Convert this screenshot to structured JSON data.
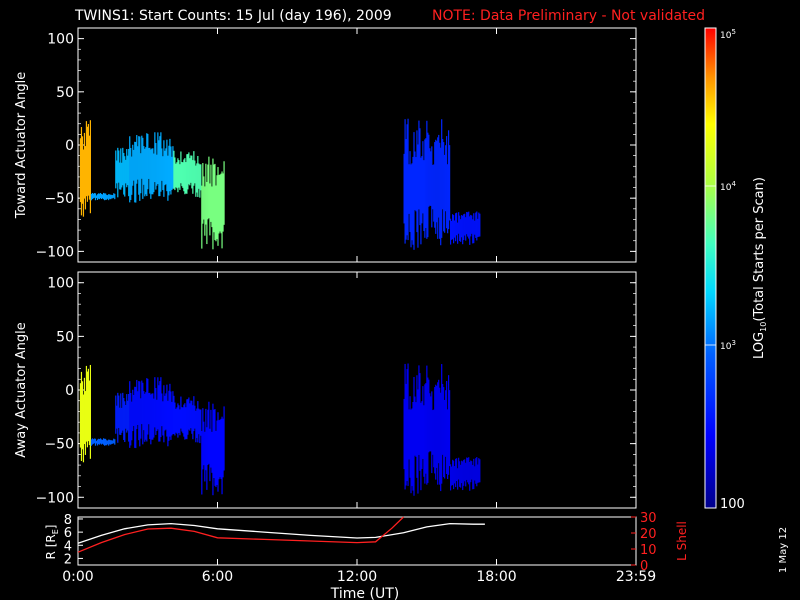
{
  "title": {
    "main": "TWINS1: Start Counts: 15 Jul (day 196), 2009",
    "note": "NOTE: Data Preliminary - Not validated"
  },
  "colors": {
    "background": "#000000",
    "axes": "#ffffff",
    "note": "#ff2020",
    "l_shell": "#ff2020",
    "r_line": "#ffffff"
  },
  "side_date": "1 May 12",
  "chart_data": [
    {
      "type": "scatter",
      "panel": "toward",
      "ylabel": "Toward Actuator Angle",
      "ylim": [
        -110,
        110
      ],
      "yticks": [
        100,
        50,
        0,
        -50,
        -100
      ],
      "xlim_hours": [
        0,
        24
      ],
      "colorscale": "log",
      "clim": [
        100,
        100000
      ],
      "segments": [
        {
          "x": [
            0.08,
            0.55
          ],
          "ylow": -70,
          "yhigh": 25,
          "value": 40000
        },
        {
          "x": [
            0.55,
            1.6
          ],
          "ylow": -52,
          "yhigh": -45,
          "value": 1500
        },
        {
          "x": [
            1.6,
            2.2
          ],
          "ylow": -50,
          "yhigh": 0,
          "value": 1800
        },
        {
          "x": [
            2.2,
            4.1
          ],
          "ylow": -55,
          "yhigh": 12,
          "value": 1600
        },
        {
          "x": [
            4.1,
            5.3
          ],
          "ylow": -50,
          "yhigh": -5,
          "value": 5000
        },
        {
          "x": [
            5.3,
            6.3
          ],
          "ylow": -100,
          "yhigh": -10,
          "value": 7000
        },
        {
          "x": [
            14.0,
            16.0
          ],
          "ylow": -100,
          "yhigh": 25,
          "value": 450
        },
        {
          "x": [
            16.0,
            17.3
          ],
          "ylow": -95,
          "yhigh": -62,
          "value": 350
        }
      ]
    },
    {
      "type": "scatter",
      "panel": "away",
      "ylabel": "Away Actuator Angle",
      "ylim": [
        -110,
        110
      ],
      "yticks": [
        100,
        50,
        0,
        -50,
        -100
      ],
      "xlim_hours": [
        0,
        24
      ],
      "colorscale": "log",
      "clim": [
        100,
        100000
      ],
      "segments": [
        {
          "x": [
            0.08,
            0.55
          ],
          "ylow": -70,
          "yhigh": 25,
          "value": 20000
        },
        {
          "x": [
            0.55,
            1.6
          ],
          "ylow": -52,
          "yhigh": -45,
          "value": 900
        },
        {
          "x": [
            1.6,
            2.2
          ],
          "ylow": -50,
          "yhigh": 0,
          "value": 400
        },
        {
          "x": [
            2.2,
            4.1
          ],
          "ylow": -55,
          "yhigh": 12,
          "value": 320
        },
        {
          "x": [
            4.1,
            5.3
          ],
          "ylow": -50,
          "yhigh": -5,
          "value": 330
        },
        {
          "x": [
            5.3,
            6.3
          ],
          "ylow": -100,
          "yhigh": -10,
          "value": 300
        },
        {
          "x": [
            14.0,
            16.0
          ],
          "ylow": -100,
          "yhigh": 25,
          "value": 250
        },
        {
          "x": [
            16.0,
            17.3
          ],
          "ylow": -95,
          "yhigh": -62,
          "value": 230
        }
      ]
    },
    {
      "type": "line",
      "panel": "orbit",
      "ylabel_left": "R [R",
      "ylabel_left_sub": "E",
      "ylabel_left_end": "]",
      "ylabel_right": "L Shell",
      "xlabel": "Time (UT)",
      "x_ticklabels": [
        "0:00",
        "6:00",
        "12:00",
        "18:00",
        "23:59"
      ],
      "x_tick_hours": [
        0,
        6,
        12,
        18,
        24
      ],
      "ylim_left": [
        1,
        8.3
      ],
      "yticks_left": [
        2,
        4,
        6,
        8
      ],
      "ylim_right": [
        0,
        30
      ],
      "yticks_right": [
        0,
        10,
        20,
        30
      ],
      "series": [
        {
          "axis": "left",
          "x": [
            0,
            1,
            2,
            3,
            4,
            5,
            6,
            8,
            10,
            12,
            12.8,
            14,
            15,
            16,
            17,
            17.5
          ],
          "y": [
            4.3,
            5.5,
            6.5,
            7.1,
            7.3,
            7.0,
            6.5,
            6.0,
            5.5,
            5.1,
            5.2,
            5.9,
            6.8,
            7.3,
            7.2,
            7.2
          ]
        },
        {
          "axis": "right",
          "x": [
            0,
            1,
            2,
            3,
            4,
            5,
            6,
            8,
            10,
            12,
            12.8,
            13.5,
            14.0
          ],
          "y": [
            8,
            14,
            19,
            22.5,
            23,
            21,
            17,
            16,
            15,
            14,
            14.5,
            23,
            30
          ]
        }
      ]
    },
    {
      "type": "heatmap",
      "panel": "colorbar",
      "label": "LOG10(Total Starts per Scan)",
      "label_main": "LOG",
      "label_sub": "10",
      "label_end": "(Total Starts per Scan)",
      "range": [
        100,
        100000
      ],
      "tick_top_base": "10",
      "tick_top_exp": "5",
      "tick_mid_base": "10",
      "tick_mid_exp": "4",
      "tick_low_base": "10",
      "tick_low_exp": "3",
      "tick_bottom": "100"
    }
  ]
}
